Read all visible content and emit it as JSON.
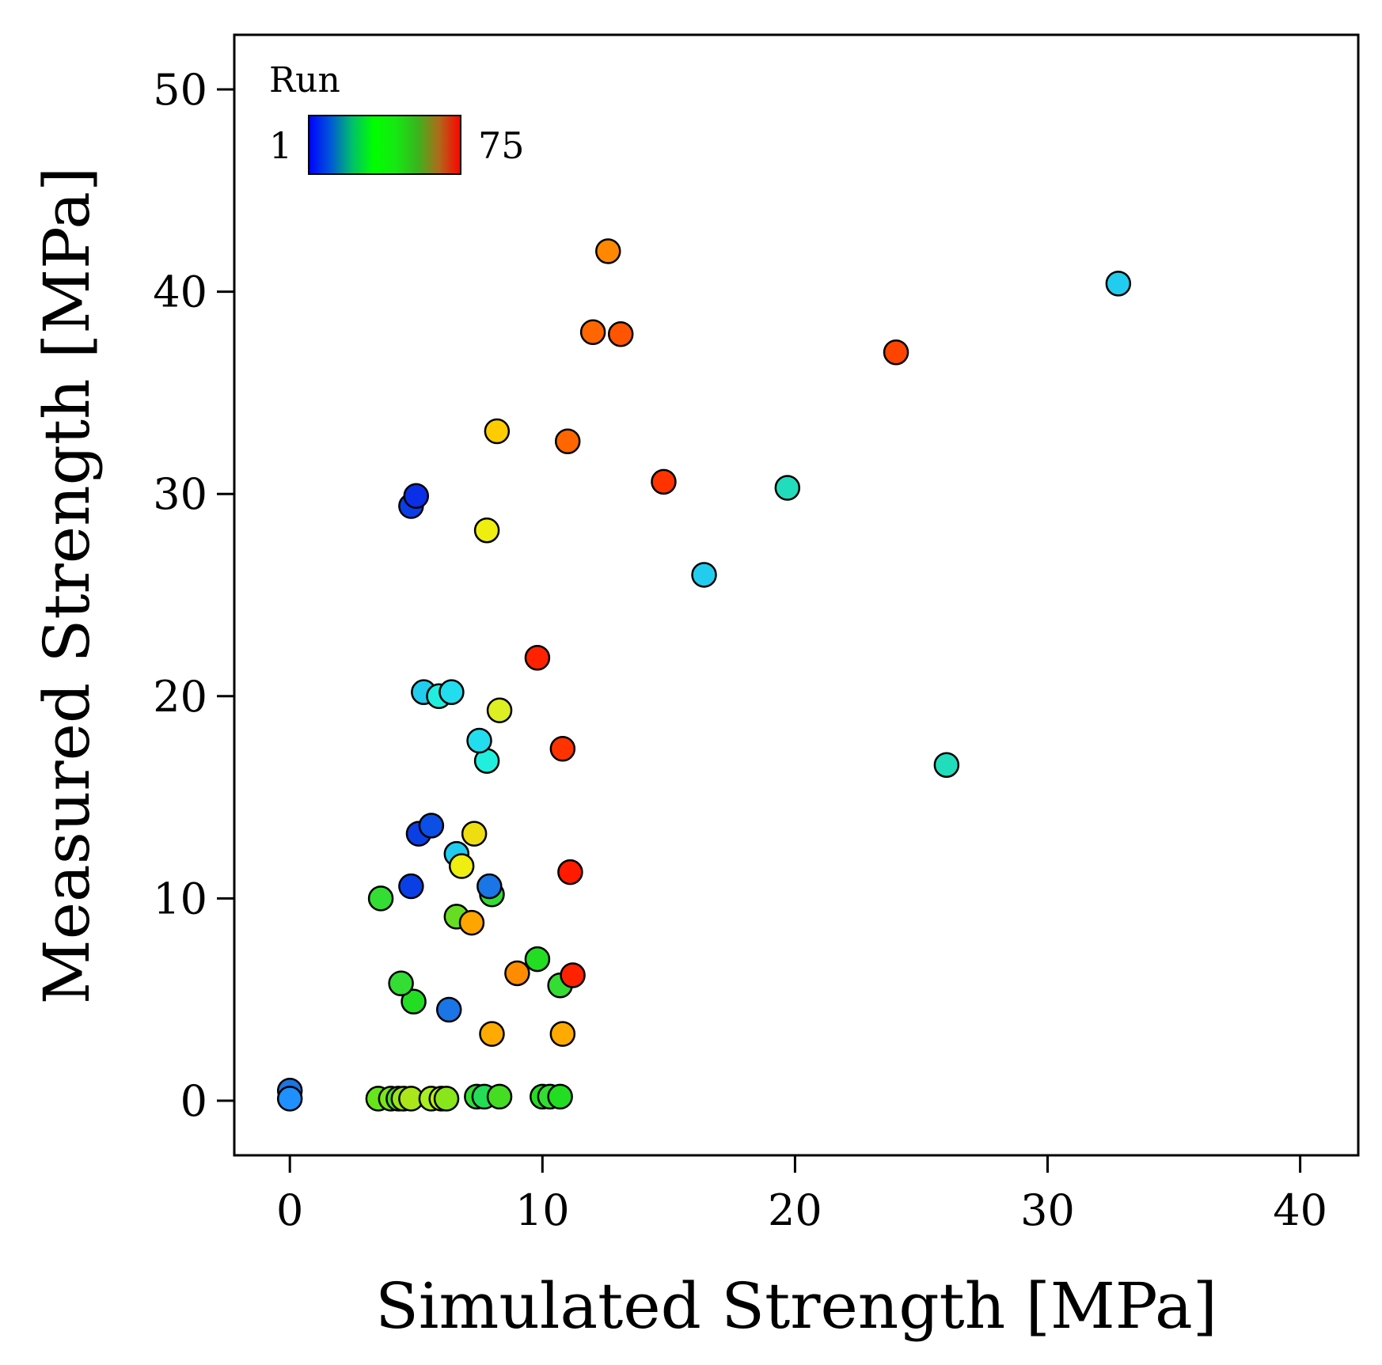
{
  "chart_data": {
    "type": "scatter",
    "xlabel": "Simulated Strength [MPa]",
    "ylabel": "Measured Strength [MPa]",
    "xlim": [
      -2.2,
      42.3
    ],
    "ylim": [
      -2.7,
      52.7
    ],
    "x_ticks": [
      0,
      10,
      20,
      30,
      40
    ],
    "y_ticks": [
      0,
      10,
      20,
      30,
      40,
      50
    ],
    "grid": false,
    "color_legend": {
      "title": "Run",
      "min_label": "1",
      "max_label": "75",
      "min_color": "#0000ff",
      "max_color": "#ff0000",
      "stops": [
        "#0000ff",
        "#0057d9",
        "#00c06a",
        "#00ff00",
        "#16e812",
        "#39b51d",
        "#b06a1a",
        "#ff0000"
      ],
      "placement": "top-left"
    },
    "points": [
      {
        "x": 0.0,
        "y": 0.5,
        "color": "#1e74e0"
      },
      {
        "x": 0.0,
        "y": 0.1,
        "color": "#1e90ff"
      },
      {
        "x": 3.5,
        "y": 0.1,
        "color": "#66e61a"
      },
      {
        "x": 4.0,
        "y": 0.1,
        "color": "#7ae61a"
      },
      {
        "x": 4.3,
        "y": 0.1,
        "color": "#55dd22"
      },
      {
        "x": 4.5,
        "y": 0.1,
        "color": "#99e61a"
      },
      {
        "x": 4.8,
        "y": 0.1,
        "color": "#aae61a"
      },
      {
        "x": 5.6,
        "y": 0.1,
        "color": "#aaee22"
      },
      {
        "x": 6.0,
        "y": 0.1,
        "color": "#bbee11"
      },
      {
        "x": 6.2,
        "y": 0.1,
        "color": "#88e61a"
      },
      {
        "x": 7.4,
        "y": 0.2,
        "color": "#33dd33"
      },
      {
        "x": 7.7,
        "y": 0.2,
        "color": "#22dd55"
      },
      {
        "x": 8.3,
        "y": 0.2,
        "color": "#44dd22"
      },
      {
        "x": 10.0,
        "y": 0.2,
        "color": "#22dd22"
      },
      {
        "x": 10.3,
        "y": 0.2,
        "color": "#33dd33"
      },
      {
        "x": 10.7,
        "y": 0.2,
        "color": "#22dd22"
      },
      {
        "x": 6.3,
        "y": 4.5,
        "color": "#1a75e6"
      },
      {
        "x": 4.9,
        "y": 4.9,
        "color": "#22dd22"
      },
      {
        "x": 4.4,
        "y": 5.8,
        "color": "#33dd33"
      },
      {
        "x": 3.6,
        "y": 10.0,
        "color": "#33dd33"
      },
      {
        "x": 8.0,
        "y": 3.3,
        "color": "#ffaa00"
      },
      {
        "x": 10.8,
        "y": 3.3,
        "color": "#ffaa00"
      },
      {
        "x": 9.0,
        "y": 6.3,
        "color": "#ff8c00"
      },
      {
        "x": 9.8,
        "y": 7.0,
        "color": "#22dd22"
      },
      {
        "x": 10.7,
        "y": 5.7,
        "color": "#33dd33"
      },
      {
        "x": 11.2,
        "y": 6.2,
        "color": "#ff2200"
      },
      {
        "x": 6.6,
        "y": 9.1,
        "color": "#66dd22"
      },
      {
        "x": 7.2,
        "y": 8.8,
        "color": "#ffa500"
      },
      {
        "x": 8.0,
        "y": 10.2,
        "color": "#33dd33"
      },
      {
        "x": 7.9,
        "y": 10.6,
        "color": "#1a75e6"
      },
      {
        "x": 4.8,
        "y": 10.6,
        "color": "#0b3fe6"
      },
      {
        "x": 6.6,
        "y": 12.2,
        "color": "#22ccee"
      },
      {
        "x": 6.8,
        "y": 11.6,
        "color": "#eeee11"
      },
      {
        "x": 5.1,
        "y": 13.2,
        "color": "#0b3fe6"
      },
      {
        "x": 5.6,
        "y": 13.6,
        "color": "#0b4fe6"
      },
      {
        "x": 7.3,
        "y": 13.2,
        "color": "#eedd11"
      },
      {
        "x": 11.1,
        "y": 11.3,
        "color": "#ff1a00"
      },
      {
        "x": 7.8,
        "y": 16.8,
        "color": "#22eedd"
      },
      {
        "x": 7.5,
        "y": 17.8,
        "color": "#22ddee"
      },
      {
        "x": 10.8,
        "y": 17.4,
        "color": "#ff3300"
      },
      {
        "x": 5.3,
        "y": 20.2,
        "color": "#22ccee"
      },
      {
        "x": 5.9,
        "y": 20.0,
        "color": "#22eedd"
      },
      {
        "x": 6.4,
        "y": 20.2,
        "color": "#22ddee"
      },
      {
        "x": 8.3,
        "y": 19.3,
        "color": "#ddee22"
      },
      {
        "x": 9.8,
        "y": 21.9,
        "color": "#ff2200"
      },
      {
        "x": 26.0,
        "y": 16.6,
        "color": "#22ddbb"
      },
      {
        "x": 16.4,
        "y": 26.0,
        "color": "#22ccee"
      },
      {
        "x": 19.7,
        "y": 30.3,
        "color": "#22ddbb"
      },
      {
        "x": 7.8,
        "y": 28.2,
        "color": "#eeee11"
      },
      {
        "x": 4.8,
        "y": 29.4,
        "color": "#0b3fe6"
      },
      {
        "x": 5.0,
        "y": 29.9,
        "color": "#0b2fe6"
      },
      {
        "x": 8.2,
        "y": 33.1,
        "color": "#ffcc00"
      },
      {
        "x": 11.0,
        "y": 32.6,
        "color": "#ff6600"
      },
      {
        "x": 14.8,
        "y": 30.6,
        "color": "#ff3300"
      },
      {
        "x": 12.0,
        "y": 38.0,
        "color": "#ff6600"
      },
      {
        "x": 13.1,
        "y": 37.9,
        "color": "#ff5500"
      },
      {
        "x": 12.6,
        "y": 42.0,
        "color": "#ff8800"
      },
      {
        "x": 24.0,
        "y": 37.0,
        "color": "#ff4400"
      },
      {
        "x": 32.8,
        "y": 40.4,
        "color": "#22ccee"
      }
    ]
  }
}
